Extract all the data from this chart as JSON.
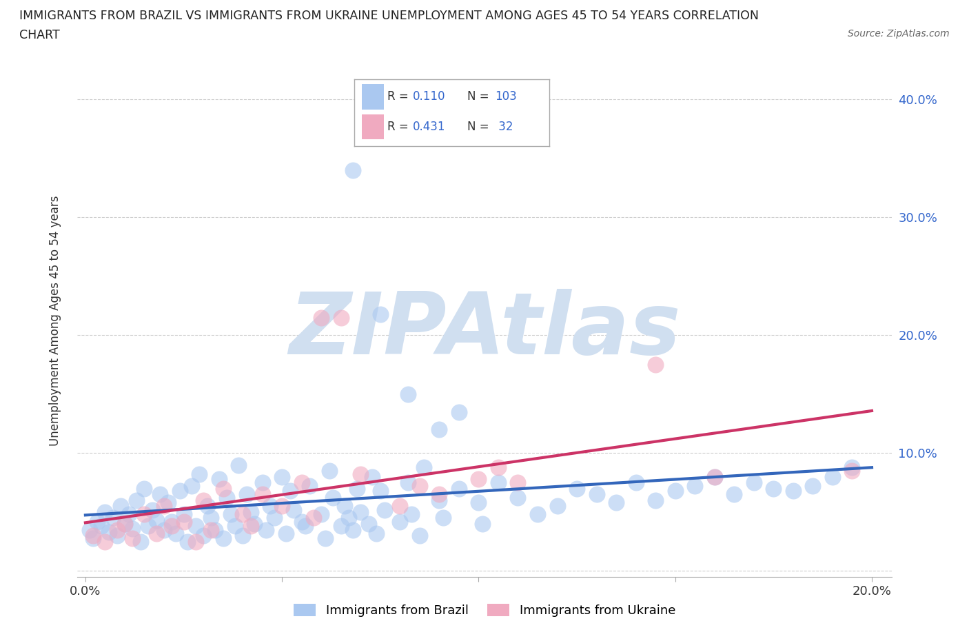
{
  "title_line1": "IMMIGRANTS FROM BRAZIL VS IMMIGRANTS FROM UKRAINE UNEMPLOYMENT AMONG AGES 45 TO 54 YEARS CORRELATION",
  "title_line2": "CHART",
  "source": "Source: ZipAtlas.com",
  "ylabel": "Unemployment Among Ages 45 to 54 years",
  "xlim": [
    -0.002,
    0.205
  ],
  "ylim": [
    -0.005,
    0.43
  ],
  "xticks": [
    0.0,
    0.05,
    0.1,
    0.15,
    0.2
  ],
  "yticks": [
    0.0,
    0.1,
    0.2,
    0.3,
    0.4
  ],
  "xtick_labels": [
    "0.0%",
    "",
    "",
    "",
    "20.0%"
  ],
  "ytick_labels": [
    "",
    "10.0%",
    "20.0%",
    "30.0%",
    "40.0%"
  ],
  "brazil_R": 0.11,
  "brazil_N": 103,
  "ukraine_R": 0.431,
  "ukraine_N": 32,
  "brazil_color": "#aac8f0",
  "ukraine_color": "#f0aac0",
  "brazil_line_color": "#3366bb",
  "ukraine_line_color": "#cc3366",
  "watermark_color": "#d0dff0",
  "background_color": "#ffffff",
  "title_color": "#222222",
  "legend_text_color": "#3366cc",
  "axis_label_color": "#3366cc",
  "grid_color": "#cccccc",
  "brazil_x": [
    0.001,
    0.002,
    0.003,
    0.004,
    0.005,
    0.006,
    0.007,
    0.008,
    0.009,
    0.01,
    0.011,
    0.012,
    0.013,
    0.014,
    0.015,
    0.016,
    0.017,
    0.018,
    0.019,
    0.02,
    0.021,
    0.022,
    0.023,
    0.024,
    0.025,
    0.026,
    0.027,
    0.028,
    0.029,
    0.03,
    0.031,
    0.032,
    0.033,
    0.034,
    0.035,
    0.036,
    0.037,
    0.038,
    0.039,
    0.04,
    0.041,
    0.042,
    0.043,
    0.045,
    0.046,
    0.047,
    0.048,
    0.05,
    0.051,
    0.052,
    0.053,
    0.055,
    0.056,
    0.057,
    0.06,
    0.061,
    0.062,
    0.063,
    0.065,
    0.066,
    0.067,
    0.068,
    0.069,
    0.07,
    0.072,
    0.073,
    0.074,
    0.075,
    0.076,
    0.08,
    0.082,
    0.083,
    0.085,
    0.086,
    0.09,
    0.091,
    0.095,
    0.1,
    0.101,
    0.105,
    0.11,
    0.115,
    0.12,
    0.125,
    0.13,
    0.135,
    0.14,
    0.145,
    0.15,
    0.155,
    0.16,
    0.165,
    0.17,
    0.175,
    0.18,
    0.185,
    0.19,
    0.195,
    0.068,
    0.075,
    0.082,
    0.09,
    0.095
  ],
  "brazil_y": [
    0.035,
    0.028,
    0.042,
    0.038,
    0.05,
    0.033,
    0.045,
    0.03,
    0.055,
    0.04,
    0.048,
    0.036,
    0.06,
    0.025,
    0.07,
    0.038,
    0.052,
    0.043,
    0.065,
    0.035,
    0.058,
    0.042,
    0.032,
    0.068,
    0.048,
    0.025,
    0.072,
    0.038,
    0.082,
    0.03,
    0.055,
    0.045,
    0.035,
    0.078,
    0.028,
    0.062,
    0.048,
    0.038,
    0.09,
    0.03,
    0.065,
    0.05,
    0.04,
    0.075,
    0.035,
    0.055,
    0.045,
    0.08,
    0.032,
    0.068,
    0.052,
    0.042,
    0.038,
    0.072,
    0.048,
    0.028,
    0.085,
    0.062,
    0.038,
    0.055,
    0.045,
    0.035,
    0.07,
    0.05,
    0.04,
    0.08,
    0.032,
    0.068,
    0.052,
    0.042,
    0.075,
    0.048,
    0.03,
    0.088,
    0.06,
    0.045,
    0.07,
    0.058,
    0.04,
    0.075,
    0.062,
    0.048,
    0.055,
    0.07,
    0.065,
    0.058,
    0.075,
    0.06,
    0.068,
    0.072,
    0.08,
    0.065,
    0.075,
    0.07,
    0.068,
    0.072,
    0.08,
    0.088,
    0.34,
    0.218,
    0.15,
    0.12,
    0.135
  ],
  "ukraine_x": [
    0.002,
    0.005,
    0.008,
    0.01,
    0.012,
    0.015,
    0.018,
    0.02,
    0.022,
    0.025,
    0.028,
    0.03,
    0.032,
    0.035,
    0.04,
    0.042,
    0.045,
    0.05,
    0.055,
    0.058,
    0.06,
    0.065,
    0.07,
    0.08,
    0.085,
    0.09,
    0.1,
    0.105,
    0.11,
    0.145,
    0.16,
    0.195
  ],
  "ukraine_y": [
    0.03,
    0.025,
    0.035,
    0.04,
    0.028,
    0.048,
    0.032,
    0.055,
    0.038,
    0.042,
    0.025,
    0.06,
    0.035,
    0.07,
    0.048,
    0.038,
    0.065,
    0.055,
    0.075,
    0.045,
    0.215,
    0.215,
    0.082,
    0.055,
    0.072,
    0.065,
    0.078,
    0.088,
    0.075,
    0.175,
    0.08,
    0.085
  ]
}
